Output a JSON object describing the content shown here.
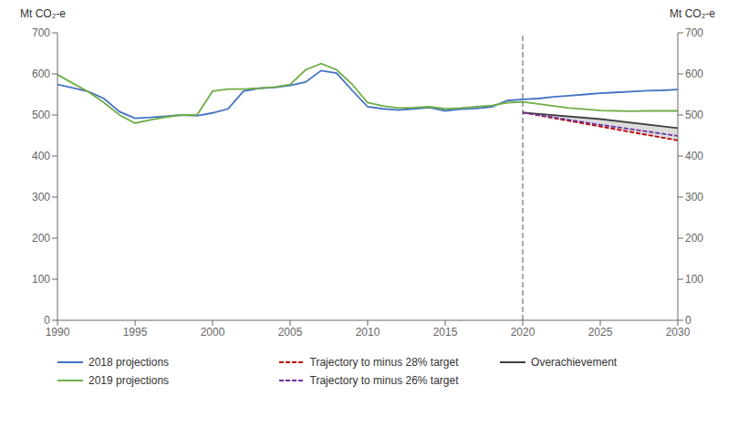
{
  "chart_data": {
    "type": "line",
    "ylabel": "Mt CO₂-e",
    "y2label": "Mt CO₂-e",
    "xlim": [
      1990,
      2030
    ],
    "xticks": [
      1990,
      1995,
      2000,
      2005,
      2010,
      2015,
      2020,
      2025,
      2030
    ],
    "ylim": [
      0,
      700
    ],
    "yticks": [
      0,
      100,
      200,
      300,
      400,
      500,
      600,
      700
    ],
    "y2lim": [
      0,
      700
    ],
    "y2ticks": [
      0,
      100,
      200,
      300,
      400,
      500,
      600,
      700
    ],
    "grid": false,
    "vline_x": 2020,
    "series": [
      {
        "name": "2018 projections",
        "type": "line",
        "color": "#4472c4",
        "line_style": "solid",
        "x": [
          1990,
          1991,
          1992,
          1993,
          1994,
          1995,
          1996,
          1997,
          1998,
          1999,
          2000,
          2001,
          2002,
          2003,
          2004,
          2005,
          2006,
          2007,
          2008,
          2009,
          2010,
          2011,
          2012,
          2013,
          2014,
          2015,
          2016,
          2017,
          2018,
          2019,
          2020,
          2021,
          2022,
          2023,
          2024,
          2025,
          2026,
          2027,
          2028,
          2029,
          2030
        ],
        "values": [
          574,
          566,
          557,
          540,
          508,
          492,
          494,
          497,
          500,
          498,
          505,
          515,
          558,
          565,
          567,
          572,
          580,
          608,
          602,
          560,
          520,
          515,
          512,
          515,
          518,
          510,
          514,
          516,
          520,
          535,
          538,
          540,
          544,
          547,
          550,
          553,
          555,
          557,
          559,
          560,
          562
        ]
      },
      {
        "name": "Trajectory to minus 28% target",
        "type": "line",
        "color": "#c00000",
        "line_style": "dashed",
        "x": [
          2020,
          2025,
          2030
        ],
        "values": [
          506,
          472,
          438
        ]
      },
      {
        "name": "Overachievement",
        "type": "line",
        "color": "#404040",
        "line_style": "solid",
        "x": [
          2020,
          2025,
          2030
        ],
        "values": [
          506,
          490,
          468
        ]
      },
      {
        "name": "2019 projections",
        "type": "line",
        "color": "#70ad47",
        "line_style": "solid",
        "x": [
          1990,
          1991,
          1992,
          1993,
          1994,
          1995,
          1996,
          1997,
          1998,
          1999,
          2000,
          2001,
          2002,
          2003,
          2004,
          2005,
          2006,
          2007,
          2008,
          2009,
          2010,
          2011,
          2012,
          2013,
          2014,
          2015,
          2016,
          2017,
          2018,
          2019,
          2020,
          2021,
          2022,
          2023,
          2024,
          2025,
          2026,
          2027,
          2028,
          2029,
          2030
        ],
        "values": [
          598,
          577,
          556,
          530,
          500,
          480,
          488,
          495,
          500,
          500,
          558,
          563,
          563,
          565,
          568,
          574,
          610,
          625,
          610,
          575,
          530,
          522,
          517,
          518,
          520,
          515,
          517,
          520,
          523,
          530,
          532,
          527,
          522,
          517,
          514,
          511,
          510,
          509,
          510,
          510,
          510
        ]
      },
      {
        "name": "Trajectory to minus 26% target",
        "type": "line",
        "color": "#7030a0",
        "line_style": "dashed",
        "x": [
          2020,
          2025,
          2030
        ],
        "values": [
          506,
          476,
          449
        ]
      },
      {
        "type": "area",
        "color": "#c0c0c0",
        "x": [
          2020,
          2025,
          2030
        ],
        "lower": [
          506,
          472,
          438
        ],
        "upper": [
          506,
          490,
          468
        ]
      }
    ]
  }
}
